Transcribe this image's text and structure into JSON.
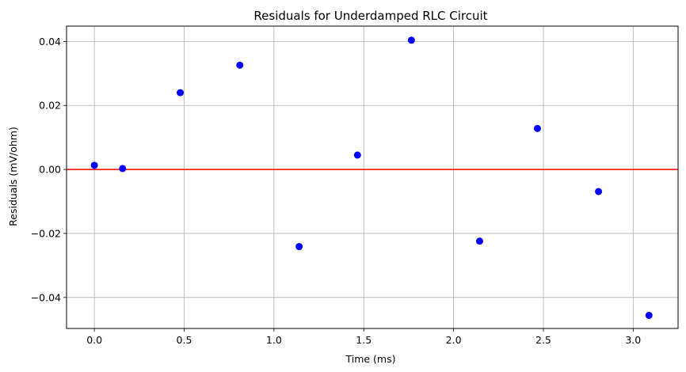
{
  "chart_data": {
    "type": "scatter",
    "title": "Residuals for Underdamped RLC Circuit",
    "xlabel": "Time (ms)",
    "ylabel": "Residuals (mV/ohm)",
    "xlim": [
      -0.155,
      3.25
    ],
    "ylim": [
      -0.0497,
      0.0448
    ],
    "xticks": [
      0.0,
      0.5,
      1.0,
      1.5,
      2.0,
      2.5,
      3.0
    ],
    "xtick_labels": [
      "0.0",
      "0.5",
      "1.0",
      "1.5",
      "2.0",
      "2.5",
      "3.0"
    ],
    "yticks": [
      -0.04,
      -0.02,
      0.0,
      0.02,
      0.04
    ],
    "ytick_labels": [
      "−0.04",
      "−0.02",
      "0.00",
      "0.02",
      "0.04"
    ],
    "grid": true,
    "marker_color": "#0000ff",
    "zero_line": {
      "y": 0.0,
      "color": "#ff0000"
    },
    "points": [
      {
        "x": 0.0,
        "y": 0.0013
      },
      {
        "x": 0.157,
        "y": 0.0003
      },
      {
        "x": 0.478,
        "y": 0.024
      },
      {
        "x": 0.81,
        "y": 0.0326
      },
      {
        "x": 1.14,
        "y": -0.0241
      },
      {
        "x": 1.465,
        "y": 0.0045
      },
      {
        "x": 1.765,
        "y": 0.0404
      },
      {
        "x": 2.145,
        "y": -0.0224
      },
      {
        "x": 2.467,
        "y": 0.0128
      },
      {
        "x": 2.807,
        "y": -0.0069
      },
      {
        "x": 3.088,
        "y": -0.0456
      }
    ]
  }
}
